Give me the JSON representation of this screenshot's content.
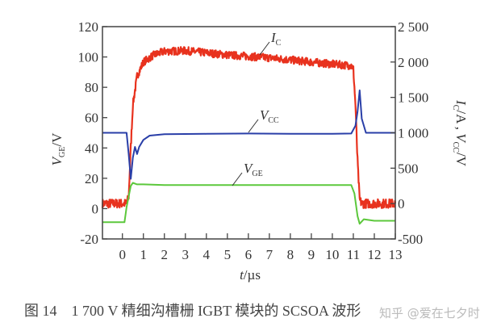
{
  "chart_data": {
    "type": "line",
    "caption": "图 14　1 700 V 精细沟槽栅 IGBT 模块的 SCSOA 波形",
    "watermark": "知乎 @爱在七夕时",
    "xlabel": {
      "main": "t",
      "unit": "/µs"
    },
    "ylabel_left": {
      "main": "V",
      "sub": "GE",
      "unit": "/V"
    },
    "ylabel_right": {
      "m1": "I",
      "s1": "C",
      "u1": "/A , ",
      "m2": "V",
      "s2": "CC",
      "u2": "/V"
    },
    "xlim": [
      -0.95,
      13
    ],
    "ylim_left": [
      -20,
      120
    ],
    "ylim_right": [
      -500,
      2500
    ],
    "xticks": [
      0,
      1,
      2,
      3,
      4,
      5,
      6,
      7,
      8,
      9,
      10,
      11,
      12,
      13
    ],
    "yticks_left": [
      -20,
      0,
      20,
      40,
      60,
      80,
      100,
      120
    ],
    "yticks_right": [
      -500,
      0,
      500,
      1000,
      1500,
      2000,
      2500
    ],
    "yticks_right_labels": [
      "-500",
      "0",
      "500",
      "1 000",
      "1 500",
      "2 000",
      "2 500"
    ],
    "grid": false,
    "series": [
      {
        "name": "I",
        "sub": "C",
        "axis": "right",
        "color": "#e8321e",
        "x": [
          -0.95,
          0.2,
          0.3,
          0.4,
          0.5,
          0.7,
          1.0,
          1.5,
          2,
          3,
          4,
          5,
          6,
          7,
          8,
          9,
          10,
          10.9,
          11.0,
          11.1,
          11.2,
          11.3,
          11.4,
          13
        ],
        "y": [
          0,
          0,
          100,
          800,
          1400,
          1800,
          2000,
          2100,
          2150,
          2160,
          2130,
          2100,
          2080,
          2060,
          2030,
          2000,
          1970,
          1950,
          1900,
          1400,
          600,
          50,
          0,
          0
        ]
      },
      {
        "name": "V",
        "sub": "CC",
        "axis": "right",
        "color": "#2a3fa8",
        "x": [
          -0.95,
          0.2,
          0.3,
          0.4,
          0.5,
          0.6,
          0.7,
          0.8,
          1.0,
          1.3,
          2,
          4,
          6,
          8,
          10,
          10.9,
          11.1,
          11.2,
          11.3,
          11.4,
          11.6,
          13
        ],
        "y": [
          1000,
          1000,
          700,
          350,
          650,
          800,
          700,
          800,
          900,
          960,
          980,
          985,
          990,
          985,
          985,
          990,
          1100,
          1300,
          1600,
          1200,
          1000,
          1000
        ]
      },
      {
        "name": "V",
        "sub": "GE",
        "axis": "left",
        "color": "#5cc83c",
        "x": [
          -0.95,
          0.1,
          0.2,
          0.3,
          0.4,
          0.5,
          0.7,
          1.0,
          2,
          4,
          6,
          8,
          10,
          10.9,
          11.05,
          11.2,
          11.3,
          11.5,
          12,
          13
        ],
        "y": [
          -9,
          -9,
          1,
          8,
          15,
          17,
          16,
          16,
          15.5,
          15.5,
          15.5,
          15.5,
          15.5,
          15.5,
          10,
          -5,
          -10,
          -7,
          -8,
          -8
        ]
      }
    ],
    "annotations": [
      "I_C",
      "V_CC",
      "V_GE"
    ]
  }
}
